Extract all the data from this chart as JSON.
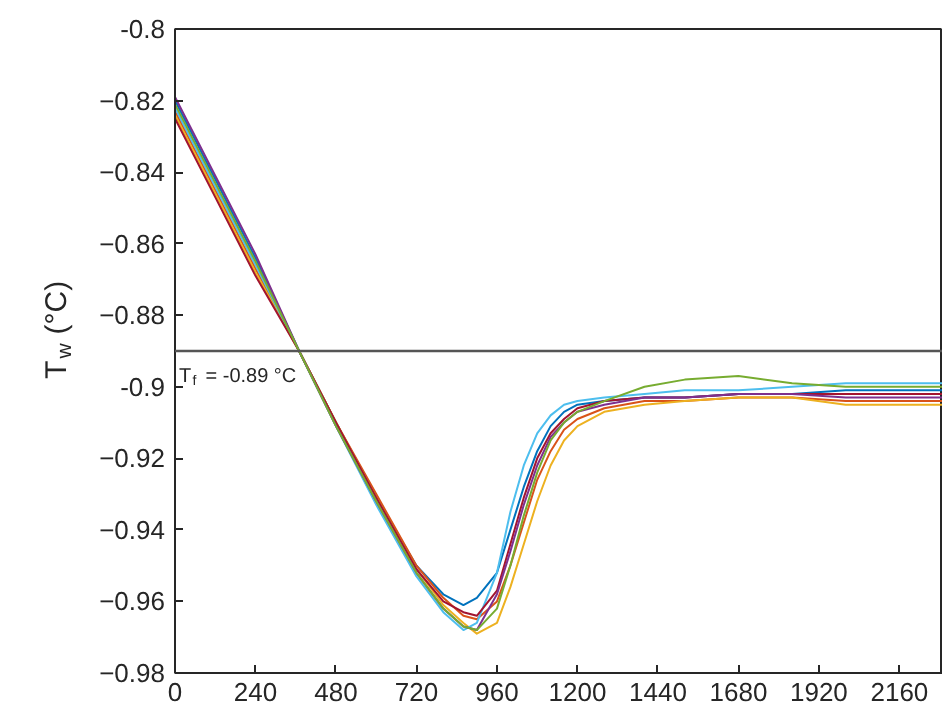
{
  "chart_data": {
    "type": "line",
    "ylabel": "T$_{w}$ (°C)",
    "x": [
      0,
      120,
      240,
      370,
      480,
      600,
      720,
      800,
      860,
      900,
      960,
      1000,
      1040,
      1080,
      1120,
      1160,
      1200,
      1280,
      1400,
      1520,
      1680,
      1840,
      2000,
      2160,
      2290
    ],
    "xlim": [
      0,
      2290
    ],
    "xticks": [
      0,
      240,
      480,
      720,
      960,
      1200,
      1440,
      1680,
      1920,
      2160
    ],
    "ylim": [
      -0.98,
      -0.8
    ],
    "yticks": [
      -0.98,
      -0.96,
      -0.94,
      -0.92,
      {
        "value": -0.9,
        "label": "-0.9"
      },
      -0.88,
      -0.86,
      -0.84,
      -0.82,
      {
        "value": -0.8,
        "label": "-0.8"
      }
    ],
    "grid": false,
    "marker": "none",
    "line_style": "solid",
    "ref_lines": [
      {
        "axis": "y",
        "value": -0.89,
        "label": "T$_{f}$ = -0.89 °C",
        "color": "#555555"
      }
    ],
    "series": [
      {
        "color": "#0072bd",
        "values": [
          -0.82,
          -0.842,
          -0.864,
          -0.89,
          -0.91,
          -0.931,
          -0.95,
          -0.958,
          -0.961,
          -0.959,
          -0.952,
          -0.94,
          -0.928,
          -0.918,
          -0.911,
          -0.907,
          -0.905,
          -0.904,
          -0.903,
          -0.903,
          -0.902,
          -0.902,
          -0.901,
          -0.901,
          -0.901
        ]
      },
      {
        "color": "#d95319",
        "values": [
          -0.823,
          -0.845,
          -0.867,
          -0.89,
          -0.91,
          -0.93,
          -0.95,
          -0.959,
          -0.964,
          -0.965,
          -0.96,
          -0.95,
          -0.938,
          -0.926,
          -0.918,
          -0.912,
          -0.909,
          -0.906,
          -0.904,
          -0.904,
          -0.903,
          -0.903,
          -0.904,
          -0.904,
          -0.904
        ]
      },
      {
        "color": "#edb120",
        "values": [
          -0.824,
          -0.846,
          -0.868,
          -0.89,
          -0.91,
          -0.931,
          -0.951,
          -0.961,
          -0.966,
          -0.969,
          -0.966,
          -0.956,
          -0.944,
          -0.932,
          -0.922,
          -0.915,
          -0.911,
          -0.907,
          -0.905,
          -0.904,
          -0.903,
          -0.903,
          -0.905,
          -0.905,
          -0.905
        ]
      },
      {
        "color": "#4dbeee",
        "values": [
          -0.822,
          -0.844,
          -0.866,
          -0.89,
          -0.911,
          -0.933,
          -0.953,
          -0.963,
          -0.968,
          -0.966,
          -0.952,
          -0.935,
          -0.922,
          -0.913,
          -0.908,
          -0.905,
          -0.904,
          -0.903,
          -0.902,
          -0.901,
          -0.901,
          -0.9,
          -0.899,
          -0.899,
          -0.899
        ]
      },
      {
        "color": "#a2142f",
        "values": [
          -0.825,
          -0.847,
          -0.869,
          -0.89,
          -0.91,
          -0.931,
          -0.951,
          -0.96,
          -0.963,
          -0.964,
          -0.957,
          -0.944,
          -0.931,
          -0.92,
          -0.913,
          -0.909,
          -0.906,
          -0.904,
          -0.903,
          -0.903,
          -0.902,
          -0.902,
          -0.902,
          -0.902,
          -0.902
        ]
      },
      {
        "color": "#7e2f8e",
        "values": [
          -0.819,
          -0.841,
          -0.863,
          -0.89,
          -0.911,
          -0.932,
          -0.952,
          -0.962,
          -0.967,
          -0.968,
          -0.958,
          -0.946,
          -0.933,
          -0.922,
          -0.914,
          -0.91,
          -0.907,
          -0.905,
          -0.903,
          -0.903,
          -0.902,
          -0.902,
          -0.903,
          -0.903,
          -0.903
        ]
      },
      {
        "color": "#77ac30",
        "values": [
          -0.821,
          -0.843,
          -0.865,
          -0.89,
          -0.911,
          -0.932,
          -0.952,
          -0.962,
          -0.967,
          -0.968,
          -0.962,
          -0.95,
          -0.936,
          -0.924,
          -0.915,
          -0.91,
          -0.907,
          -0.904,
          -0.9,
          -0.898,
          -0.897,
          -0.899,
          -0.9,
          -0.9,
          -0.9
        ]
      }
    ]
  }
}
